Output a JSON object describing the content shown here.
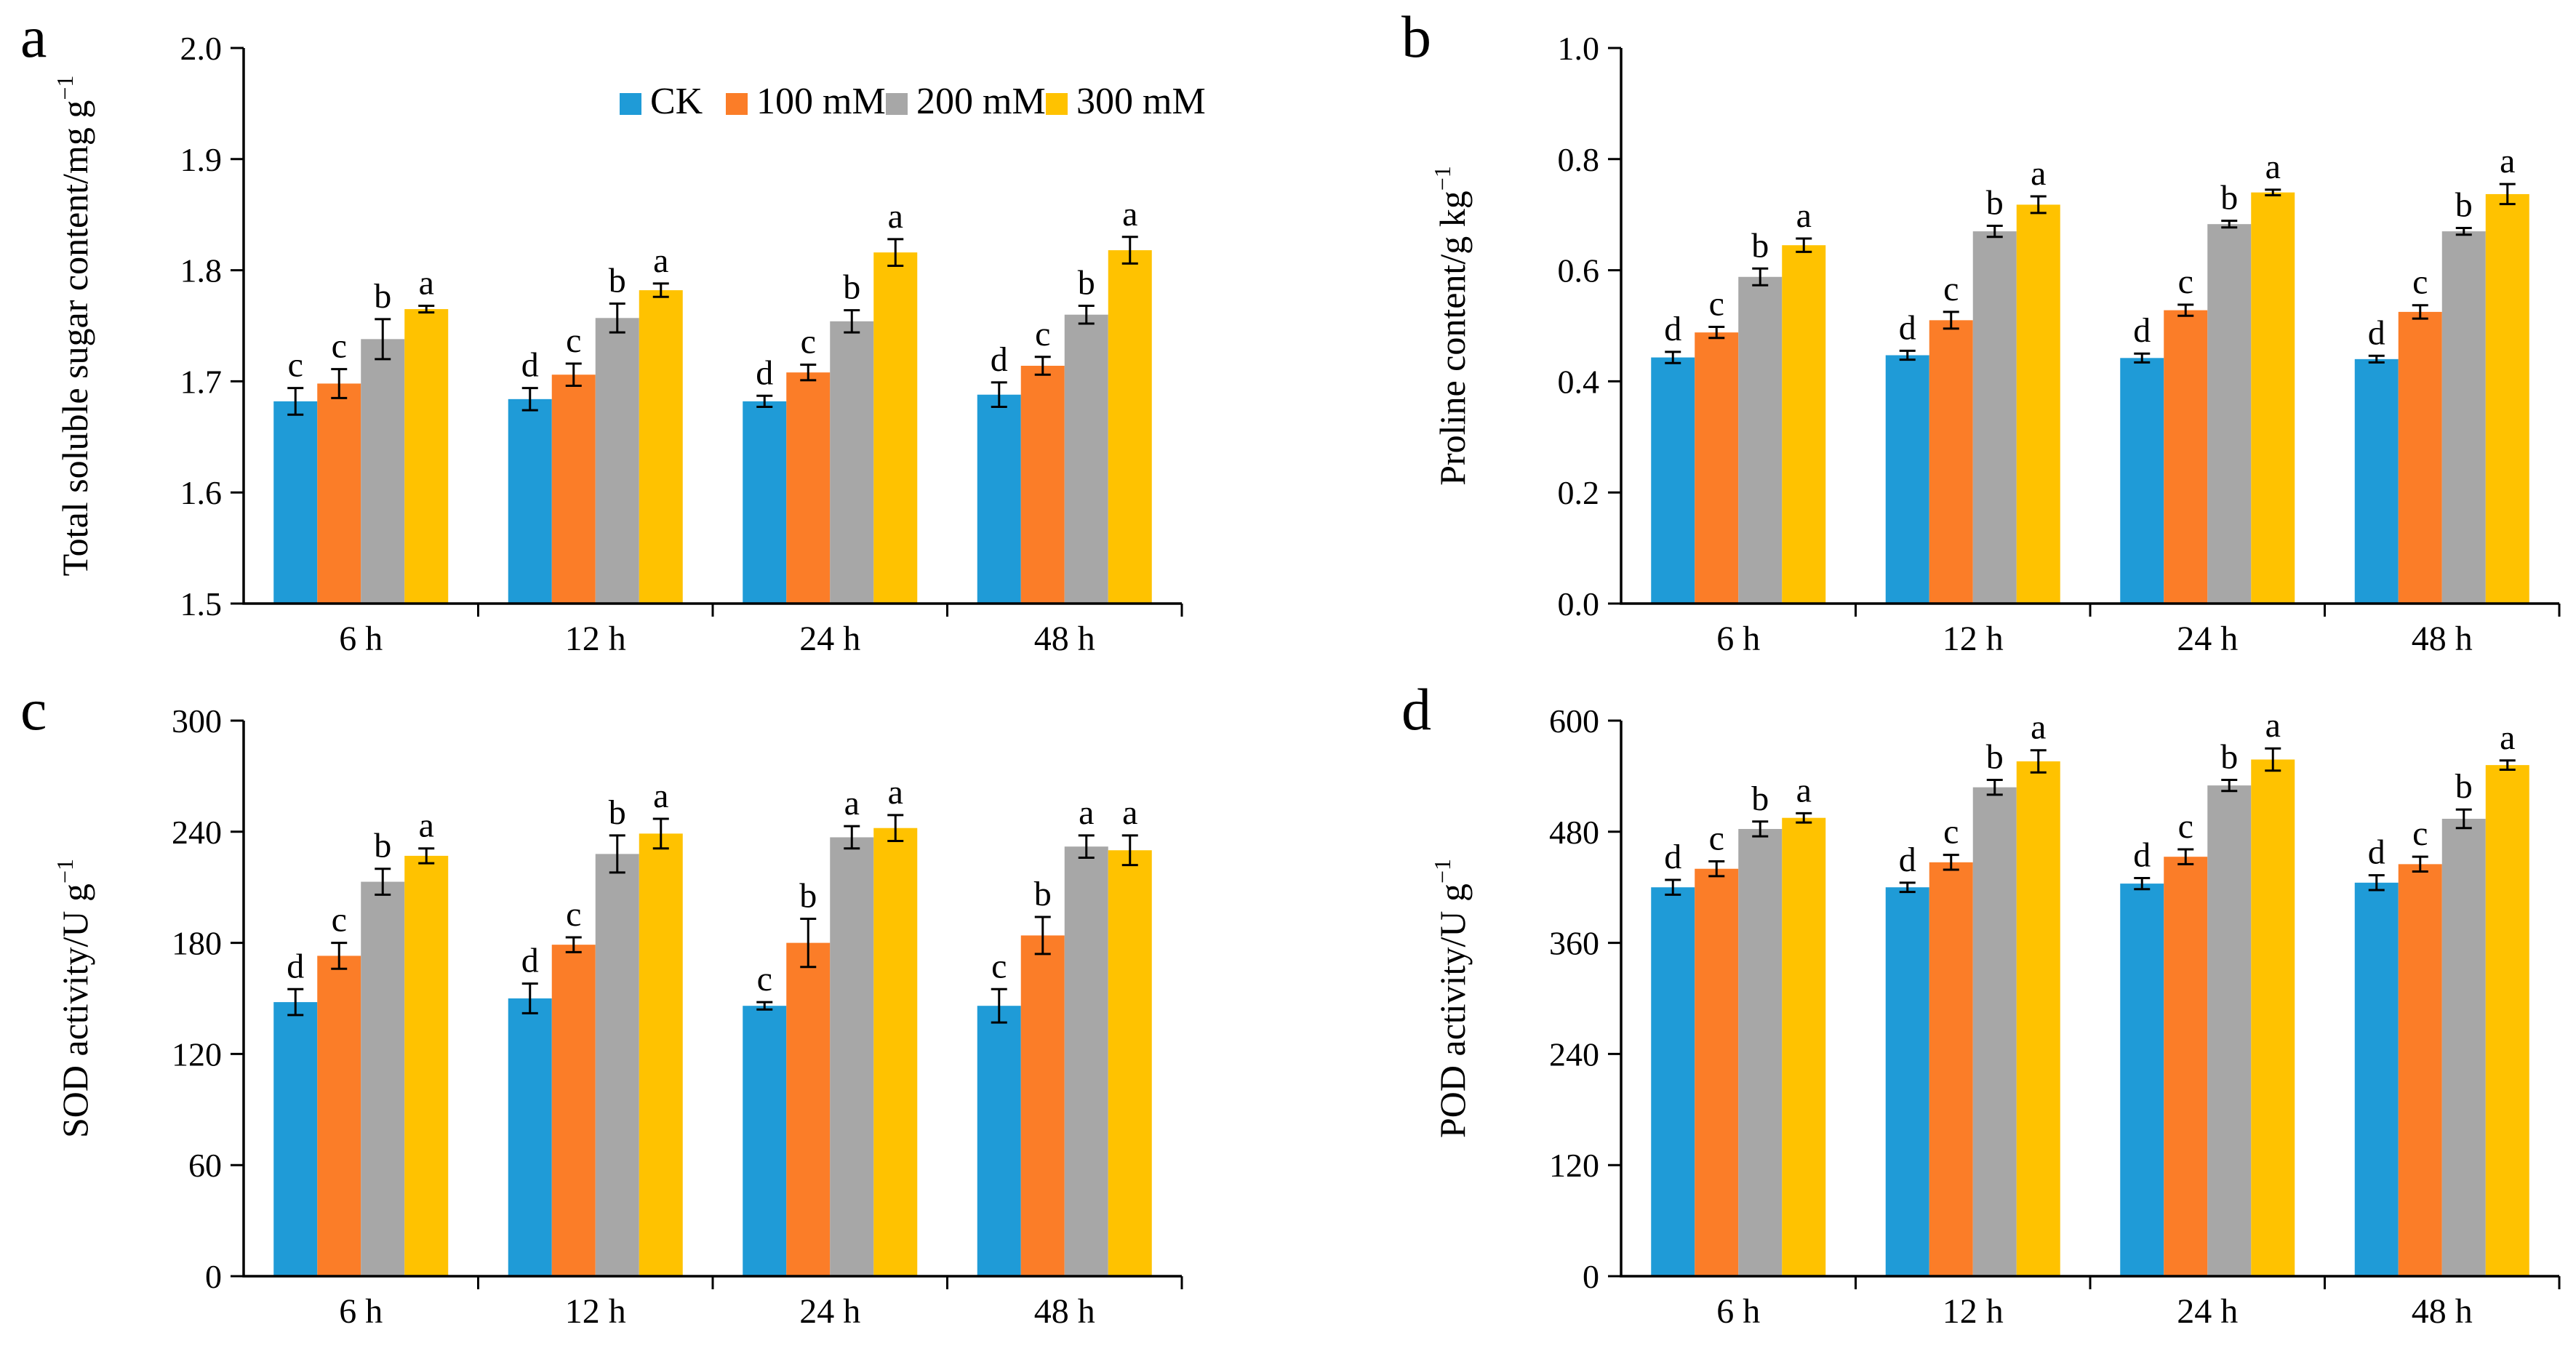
{
  "figure": {
    "background": "#ffffff",
    "axis_color": "#000000",
    "legend": {
      "position": "top-center-of-panel-a",
      "items": [
        {
          "label": "CK",
          "color": "#1F9BD7"
        },
        {
          "label": "100 mM",
          "color": "#FB7D28"
        },
        {
          "label": "200 mM",
          "color": "#A7A7A7"
        },
        {
          "label": "300 mM",
          "color": "#FFC200"
        }
      ]
    },
    "panel_letters": [
      "a",
      "b",
      "c",
      "d"
    ]
  },
  "chart_data": [
    {
      "type": "bar",
      "panel_letter": "a",
      "ylabel": "Total soluble sugar content/mg g",
      "ylabel_superscript": "−1",
      "ylim": [
        1.5,
        2.0
      ],
      "yticks": [
        {
          "v": 1.5,
          "label": "1.5"
        },
        {
          "v": 1.6,
          "label": "1.6"
        },
        {
          "v": 1.7,
          "label": "1.7"
        },
        {
          "v": 1.8,
          "label": "1.8"
        },
        {
          "v": 1.9,
          "label": "1.9"
        },
        {
          "v": 2.0,
          "label": "2.0"
        }
      ],
      "categories": [
        "6 h",
        "12 h",
        "24 h",
        "48 h"
      ],
      "grid": false,
      "show_legend": true,
      "series": [
        {
          "name": "CK",
          "color": "#1F9BD7",
          "values": [
            1.682,
            1.684,
            1.682,
            1.688
          ],
          "errors": [
            0.012,
            0.01,
            0.005,
            0.011
          ],
          "sig_letters": [
            "c",
            "d",
            "d",
            "d"
          ]
        },
        {
          "name": "100 mM",
          "color": "#FB7D28",
          "values": [
            1.698,
            1.706,
            1.708,
            1.714
          ],
          "errors": [
            0.013,
            0.01,
            0.007,
            0.008
          ],
          "sig_letters": [
            "c",
            "c",
            "c",
            "c"
          ]
        },
        {
          "name": "200 mM",
          "color": "#A7A7A7",
          "values": [
            1.738,
            1.757,
            1.754,
            1.76
          ],
          "errors": [
            0.018,
            0.013,
            0.01,
            0.008
          ],
          "sig_letters": [
            "b",
            "b",
            "b",
            "b"
          ]
        },
        {
          "name": "300 mM",
          "color": "#FFC200",
          "values": [
            1.765,
            1.782,
            1.816,
            1.818
          ],
          "errors": [
            0.003,
            0.006,
            0.012,
            0.012
          ],
          "sig_letters": [
            "a",
            "a",
            "a",
            "a"
          ]
        }
      ]
    },
    {
      "type": "bar",
      "panel_letter": "b",
      "ylabel": "Proline content/g kg",
      "ylabel_superscript": "−1",
      "ylim": [
        0.0,
        1.0
      ],
      "yticks": [
        {
          "v": 0.0,
          "label": "0.0"
        },
        {
          "v": 0.2,
          "label": "0.2"
        },
        {
          "v": 0.4,
          "label": "0.4"
        },
        {
          "v": 0.6,
          "label": "0.6"
        },
        {
          "v": 0.8,
          "label": "0.8"
        },
        {
          "v": 1.0,
          "label": "1.0"
        }
      ],
      "categories": [
        "6 h",
        "12 h",
        "24 h",
        "48 h"
      ],
      "grid": false,
      "show_legend": false,
      "series": [
        {
          "name": "CK",
          "color": "#1F9BD7",
          "values": [
            0.443,
            0.447,
            0.442,
            0.44
          ],
          "errors": [
            0.01,
            0.008,
            0.008,
            0.006
          ],
          "sig_letters": [
            "d",
            "d",
            "d",
            "d"
          ]
        },
        {
          "name": "100 mM",
          "color": "#FB7D28",
          "values": [
            0.488,
            0.51,
            0.528,
            0.525
          ],
          "errors": [
            0.01,
            0.015,
            0.01,
            0.012
          ],
          "sig_letters": [
            "c",
            "c",
            "c",
            "c"
          ]
        },
        {
          "name": "200 mM",
          "color": "#A7A7A7",
          "values": [
            0.588,
            0.67,
            0.683,
            0.67
          ],
          "errors": [
            0.015,
            0.01,
            0.006,
            0.006
          ],
          "sig_letters": [
            "b",
            "b",
            "b",
            "b"
          ]
        },
        {
          "name": "300 mM",
          "color": "#FFC200",
          "values": [
            0.645,
            0.718,
            0.74,
            0.737
          ],
          "errors": [
            0.012,
            0.015,
            0.005,
            0.018
          ],
          "sig_letters": [
            "a",
            "a",
            "a",
            "a"
          ]
        }
      ]
    },
    {
      "type": "bar",
      "panel_letter": "c",
      "ylabel": "SOD activity/U g",
      "ylabel_superscript": "−1",
      "ylim": [
        0,
        300
      ],
      "yticks": [
        {
          "v": 0,
          "label": "0"
        },
        {
          "v": 60,
          "label": "60"
        },
        {
          "v": 120,
          "label": "120"
        },
        {
          "v": 180,
          "label": "180"
        },
        {
          "v": 240,
          "label": "240"
        },
        {
          "v": 300,
          "label": "300"
        }
      ],
      "categories": [
        "6 h",
        "12 h",
        "24 h",
        "48 h"
      ],
      "grid": false,
      "show_legend": false,
      "series": [
        {
          "name": "CK",
          "color": "#1F9BD7",
          "values": [
            148,
            150,
            146,
            146
          ],
          "errors": [
            7,
            8,
            2,
            9
          ],
          "sig_letters": [
            "d",
            "d",
            "c",
            "c"
          ]
        },
        {
          "name": "100 mM",
          "color": "#FB7D28",
          "values": [
            173,
            179,
            180,
            184
          ],
          "errors": [
            7,
            4,
            13,
            10
          ],
          "sig_letters": [
            "c",
            "c",
            "b",
            "b"
          ]
        },
        {
          "name": "200 mM",
          "color": "#A7A7A7",
          "values": [
            213,
            228,
            237,
            232
          ],
          "errors": [
            7,
            10,
            6,
            6
          ],
          "sig_letters": [
            "b",
            "b",
            "a",
            "a"
          ]
        },
        {
          "name": "300 mM",
          "color": "#FFC200",
          "values": [
            227,
            239,
            242,
            230
          ],
          "errors": [
            4,
            8,
            7,
            8
          ],
          "sig_letters": [
            "a",
            "a",
            "a",
            "a"
          ]
        }
      ]
    },
    {
      "type": "bar",
      "panel_letter": "d",
      "ylabel": "POD activity/U g",
      "ylabel_superscript": "−1",
      "ylim": [
        0,
        600
      ],
      "yticks": [
        {
          "v": 0,
          "label": "0"
        },
        {
          "v": 120,
          "label": "120"
        },
        {
          "v": 240,
          "label": "240"
        },
        {
          "v": 360,
          "label": "360"
        },
        {
          "v": 480,
          "label": "480"
        },
        {
          "v": 600,
          "label": "600"
        }
      ],
      "categories": [
        "6 h",
        "12 h",
        "24 h",
        "48 h"
      ],
      "grid": false,
      "show_legend": false,
      "series": [
        {
          "name": "CK",
          "color": "#1F9BD7",
          "values": [
            420,
            420,
            424,
            425
          ],
          "errors": [
            8,
            5,
            6,
            8
          ],
          "sig_letters": [
            "d",
            "d",
            "d",
            "d"
          ]
        },
        {
          "name": "100 mM",
          "color": "#FB7D28",
          "values": [
            440,
            447,
            453,
            445
          ],
          "errors": [
            8,
            8,
            8,
            8
          ],
          "sig_letters": [
            "c",
            "c",
            "c",
            "c"
          ]
        },
        {
          "name": "200 mM",
          "color": "#A7A7A7",
          "values": [
            483,
            528,
            530,
            494
          ],
          "errors": [
            8,
            8,
            6,
            10
          ],
          "sig_letters": [
            "b",
            "b",
            "b",
            "b"
          ]
        },
        {
          "name": "300 mM",
          "color": "#FFC200",
          "values": [
            495,
            556,
            558,
            552
          ],
          "errors": [
            5,
            12,
            12,
            5
          ],
          "sig_letters": [
            "a",
            "a",
            "a",
            "a"
          ]
        }
      ]
    }
  ]
}
